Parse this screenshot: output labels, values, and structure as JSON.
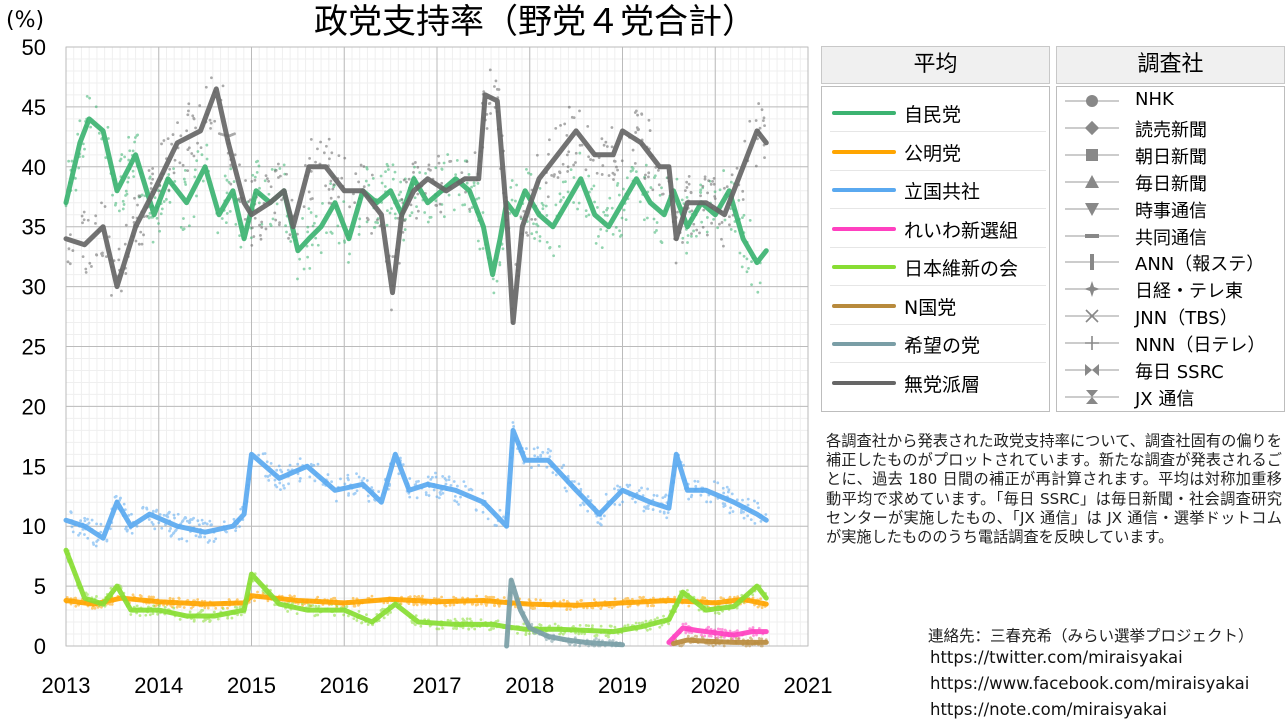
{
  "unit_label": "(%)",
  "chart_data": {
    "type": "line",
    "title": "政党支持率（野党４党合計）",
    "xlabel": "",
    "ylabel": "(%)",
    "xlim": [
      2013,
      2021
    ],
    "ylim": [
      0,
      50
    ],
    "x_ticks": [
      "2013",
      "2014",
      "2015",
      "2016",
      "2017",
      "2018",
      "2019",
      "2020",
      "2021"
    ],
    "y_ticks": [
      "0",
      "5",
      "10",
      "15",
      "20",
      "25",
      "30",
      "35",
      "40",
      "45",
      "50"
    ],
    "grid": true,
    "series": [
      {
        "name": "自民党",
        "color": "#3cb371",
        "x": [
          2013.0,
          2013.15,
          2013.25,
          2013.4,
          2013.55,
          2013.75,
          2013.95,
          2014.1,
          2014.3,
          2014.5,
          2014.65,
          2014.8,
          2014.92,
          2015.05,
          2015.2,
          2015.35,
          2015.5,
          2015.62,
          2015.75,
          2015.9,
          2016.05,
          2016.2,
          2016.35,
          2016.5,
          2016.62,
          2016.75,
          2016.9,
          2017.05,
          2017.2,
          2017.35,
          2017.5,
          2017.6,
          2017.68,
          2017.75,
          2017.85,
          2017.95,
          2018.1,
          2018.25,
          2018.4,
          2018.55,
          2018.7,
          2018.85,
          2019.0,
          2019.15,
          2019.3,
          2019.45,
          2019.55,
          2019.7,
          2019.85,
          2020.0,
          2020.15,
          2020.3,
          2020.45,
          2020.55
        ],
        "y": [
          37,
          42,
          44,
          43,
          38,
          41,
          36,
          39,
          37,
          40,
          36,
          38,
          34,
          38,
          37,
          38,
          33,
          34,
          35,
          37,
          34,
          38,
          37,
          38,
          36,
          39,
          37,
          38,
          39,
          38,
          35,
          31,
          34,
          37,
          36,
          38,
          36,
          35,
          37,
          39,
          36,
          35,
          37,
          39,
          37,
          36,
          38,
          35,
          37,
          36,
          38,
          34,
          32,
          33
        ]
      },
      {
        "name": "公明党",
        "color": "#ffa500",
        "x": [
          2013.0,
          2013.3,
          2013.6,
          2014.0,
          2014.5,
          2014.92,
          2015.0,
          2015.5,
          2016.0,
          2016.5,
          2017.0,
          2017.5,
          2017.8,
          2018.0,
          2018.5,
          2019.0,
          2019.5,
          2020.0,
          2020.3,
          2020.55
        ],
        "y": [
          3.8,
          3.5,
          4.0,
          3.7,
          3.5,
          3.6,
          4.2,
          3.8,
          3.6,
          3.9,
          3.7,
          3.8,
          3.6,
          3.5,
          3.4,
          3.6,
          3.8,
          3.6,
          3.9,
          3.5
        ]
      },
      {
        "name": "立国共社",
        "color": "#5aa9f0",
        "x": [
          2013.0,
          2013.2,
          2013.4,
          2013.55,
          2013.7,
          2013.9,
          2014.2,
          2014.5,
          2014.8,
          2014.92,
          2015.0,
          2015.3,
          2015.6,
          2015.9,
          2016.2,
          2016.4,
          2016.55,
          2016.7,
          2016.9,
          2017.2,
          2017.5,
          2017.75,
          2017.82,
          2017.95,
          2018.2,
          2018.5,
          2018.75,
          2019.0,
          2019.3,
          2019.5,
          2019.58,
          2019.7,
          2019.9,
          2020.2,
          2020.45,
          2020.55
        ],
        "y": [
          10.5,
          10,
          9,
          12,
          10,
          11,
          10,
          9.5,
          10,
          11,
          16,
          14,
          15,
          13,
          13.5,
          12,
          16,
          13,
          13.5,
          13,
          12,
          10,
          18,
          15.5,
          15.5,
          13,
          11,
          13,
          12,
          11.5,
          16,
          13,
          13,
          12,
          11,
          10.5
        ]
      },
      {
        "name": "れいわ新選組",
        "color": "#ff40c0",
        "x": [
          2019.5,
          2019.65,
          2019.8,
          2020.0,
          2020.2,
          2020.4,
          2020.55
        ],
        "y": [
          0.3,
          1.5,
          1.3,
          1.1,
          0.9,
          1.2,
          1.2
        ]
      },
      {
        "name": "日本維新の会",
        "color": "#88dd33",
        "x": [
          2013.0,
          2013.2,
          2013.4,
          2013.55,
          2013.7,
          2014.0,
          2014.3,
          2014.6,
          2014.92,
          2015.0,
          2015.3,
          2015.6,
          2016.0,
          2016.3,
          2016.55,
          2016.8,
          2017.2,
          2017.6,
          2017.75,
          2017.95,
          2018.3,
          2018.6,
          2018.9,
          2019.2,
          2019.5,
          2019.65,
          2019.9,
          2020.2,
          2020.45,
          2020.55
        ],
        "y": [
          8,
          4,
          3.5,
          5,
          3,
          3,
          2.5,
          2.5,
          3,
          6,
          3.5,
          3,
          3,
          2,
          3.5,
          2,
          1.8,
          1.8,
          1.6,
          1.4,
          1.4,
          1.3,
          1.2,
          1.6,
          2.2,
          4.5,
          3,
          3.3,
          5,
          4
        ]
      },
      {
        "name": "N国党",
        "color": "#b88a3c",
        "x": [
          2019.55,
          2019.7,
          2019.9,
          2020.2,
          2020.55
        ],
        "y": [
          0.2,
          0.5,
          0.4,
          0.3,
          0.3
        ]
      },
      {
        "name": "希望の党",
        "color": "#7a9ea6",
        "x": [
          2017.75,
          2017.8,
          2017.9,
          2018.0,
          2018.2,
          2018.4,
          2018.6,
          2018.8,
          2019.0
        ],
        "y": [
          0,
          5.5,
          3,
          1.5,
          0.8,
          0.5,
          0.3,
          0.2,
          0.1
        ]
      },
      {
        "name": "無党派層",
        "color": "#666666",
        "x": [
          2013.0,
          2013.2,
          2013.4,
          2013.55,
          2013.75,
          2013.95,
          2014.2,
          2014.45,
          2014.62,
          2014.75,
          2014.92,
          2015.0,
          2015.2,
          2015.35,
          2015.45,
          2015.62,
          2015.8,
          2016.0,
          2016.2,
          2016.4,
          2016.52,
          2016.62,
          2016.75,
          2016.9,
          2017.1,
          2017.3,
          2017.45,
          2017.52,
          2017.65,
          2017.75,
          2017.82,
          2017.92,
          2018.1,
          2018.3,
          2018.5,
          2018.7,
          2018.9,
          2019.0,
          2019.2,
          2019.4,
          2019.5,
          2019.58,
          2019.7,
          2019.9,
          2020.1,
          2020.3,
          2020.45,
          2020.55
        ],
        "y": [
          34,
          33.5,
          35,
          30,
          35,
          38,
          42,
          43,
          46.5,
          42,
          37,
          36,
          37,
          38,
          35,
          40,
          40,
          38,
          38,
          36,
          29.5,
          36,
          38,
          39,
          38,
          39,
          39,
          46,
          45.5,
          36,
          27,
          35,
          39,
          41,
          43,
          41,
          41,
          43,
          42,
          40,
          40,
          34,
          37,
          37,
          36,
          40,
          43,
          42
        ]
      }
    ],
    "sources": [
      "NHK",
      "読売新聞",
      "朝日新聞",
      "毎日新聞",
      "時事通信",
      "共同通信",
      "ANN（報ステ）",
      "日経・テレ東",
      "JNN（TBS）",
      "NNN（日テレ）",
      "毎日 SSRC",
      "JX 通信"
    ]
  },
  "legend": {
    "average_header": "平均",
    "source_header": "調査社"
  },
  "note": "各調査社から発表された政党支持率について、調査社固有の偏りを補正したものがプロットされています。新たな調査が発表されるごとに、過去 180 日間の補正が再計算されます。平均は対称加重移動平均で求めています。「毎日 SSRC」は毎日新聞・社会調査研究センターが実施したもの、「JX 通信」は JX 通信・選挙ドットコムが実施したもののうち電話調査を反映しています。",
  "contact": {
    "label": "連絡先：三春充希（みらい選挙プロジェクト）",
    "links": [
      "https://twitter.com/miraisyakai",
      "https://www.facebook.com/miraisyakai",
      "https://note.com/miraisyakai"
    ]
  }
}
